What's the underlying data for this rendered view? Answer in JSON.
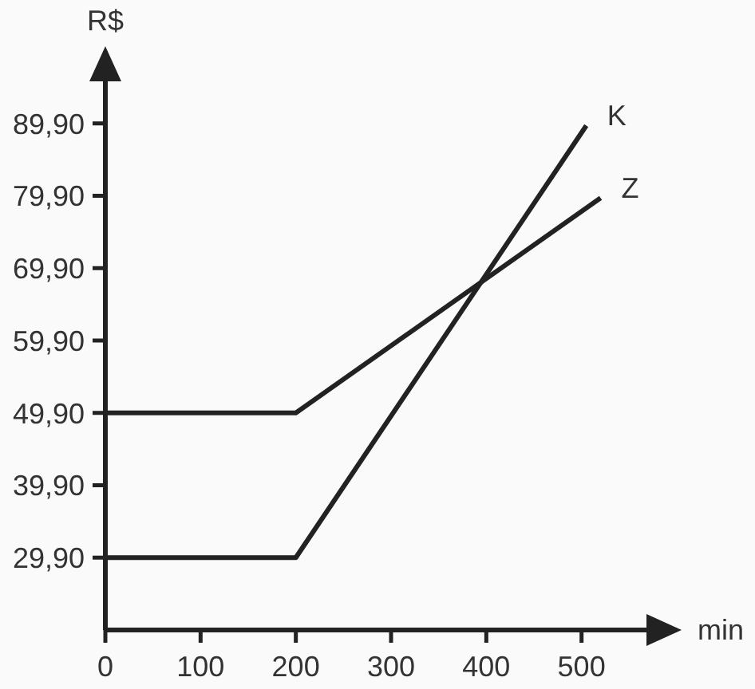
{
  "chart_data": {
    "type": "line",
    "xlabel": "min",
    "ylabel": "R$",
    "xlim": [
      0,
      600
    ],
    "ylim": [
      19.9,
      99.9
    ],
    "xticks": [
      0,
      100,
      200,
      300,
      400,
      500
    ],
    "yticks": [
      {
        "value": 29.9,
        "label": "29,90"
      },
      {
        "value": 39.9,
        "label": "39,90"
      },
      {
        "value": 49.9,
        "label": "49,90"
      },
      {
        "value": 59.9,
        "label": "59,90"
      },
      {
        "value": 69.9,
        "label": "69,90"
      },
      {
        "value": 79.9,
        "label": "79,90"
      },
      {
        "value": 89.9,
        "label": "89,90"
      }
    ],
    "series": [
      {
        "name": "K",
        "color": "#222222",
        "x": [
          0,
          200,
          505
        ],
        "values": [
          29.9,
          29.9,
          89.6
        ]
      },
      {
        "name": "Z",
        "color": "#222222",
        "x": [
          0,
          200,
          520
        ],
        "values": [
          49.9,
          49.9,
          79.6
        ]
      }
    ],
    "marker": "none",
    "line_style": "solid"
  }
}
